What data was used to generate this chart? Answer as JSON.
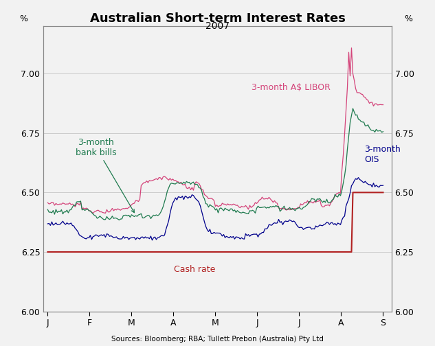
{
  "title": "Australian Short-term Interest Rates",
  "subtitle": "2007",
  "ylabel_left": "%",
  "ylabel_right": "%",
  "source": "Sources: Bloomberg; RBA; Tullett Prebon (Australia) Pty Ltd",
  "ylim": [
    6.0,
    7.2
  ],
  "yticks": [
    6.0,
    6.25,
    6.5,
    6.75,
    7.0
  ],
  "ytick_labels": [
    "6.00",
    "6.25",
    "6.50",
    "6.75",
    "7.00"
  ],
  "xtick_labels": [
    "J",
    "F",
    "M",
    "A",
    "M",
    "J",
    "J",
    "A",
    "S"
  ],
  "background_color": "#f2f2f2",
  "plot_background": "#f2f2f2",
  "cash_rate_color": "#b22222",
  "libor_color": "#d4447a",
  "bank_bills_color": "#1e7a4e",
  "ois_color": "#00008b",
  "cash_rate_label": "Cash rate",
  "libor_label": "3-month A$ LIBOR",
  "bank_bills_label": "3-month\nbank bills",
  "ois_label": "3-month\nOIS",
  "grid_color": "#cccccc",
  "spine_color": "#888888"
}
